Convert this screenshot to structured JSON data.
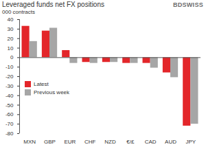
{
  "chart_data": {
    "type": "bar",
    "title": "Leveraged funds net FX positions",
    "ylabel": "000 contracts",
    "annotations": [
      "BDSWISS"
    ],
    "categories": [
      "MXN",
      "GBP",
      "EUR",
      "CHF",
      "NZD",
      "€/£",
      "CAD",
      "AUD",
      "JPY"
    ],
    "series": [
      {
        "name": "Latest",
        "color": "#e3262a",
        "values": [
          33,
          28,
          7.5,
          -5,
          -5,
          -6,
          -6,
          -16,
          -72
        ]
      },
      {
        "name": "Previous week",
        "color": "#a6a6a6",
        "values": [
          17,
          31,
          -6,
          -6,
          -5,
          -6,
          -11,
          -21,
          -70
        ]
      }
    ],
    "ylim": [
      -80,
      40
    ],
    "yticks": [
      -80,
      -70,
      -60,
      -50,
      -40,
      -30,
      -20,
      -10,
      0,
      10,
      20,
      30,
      40
    ],
    "grid": false,
    "legend": "left"
  }
}
